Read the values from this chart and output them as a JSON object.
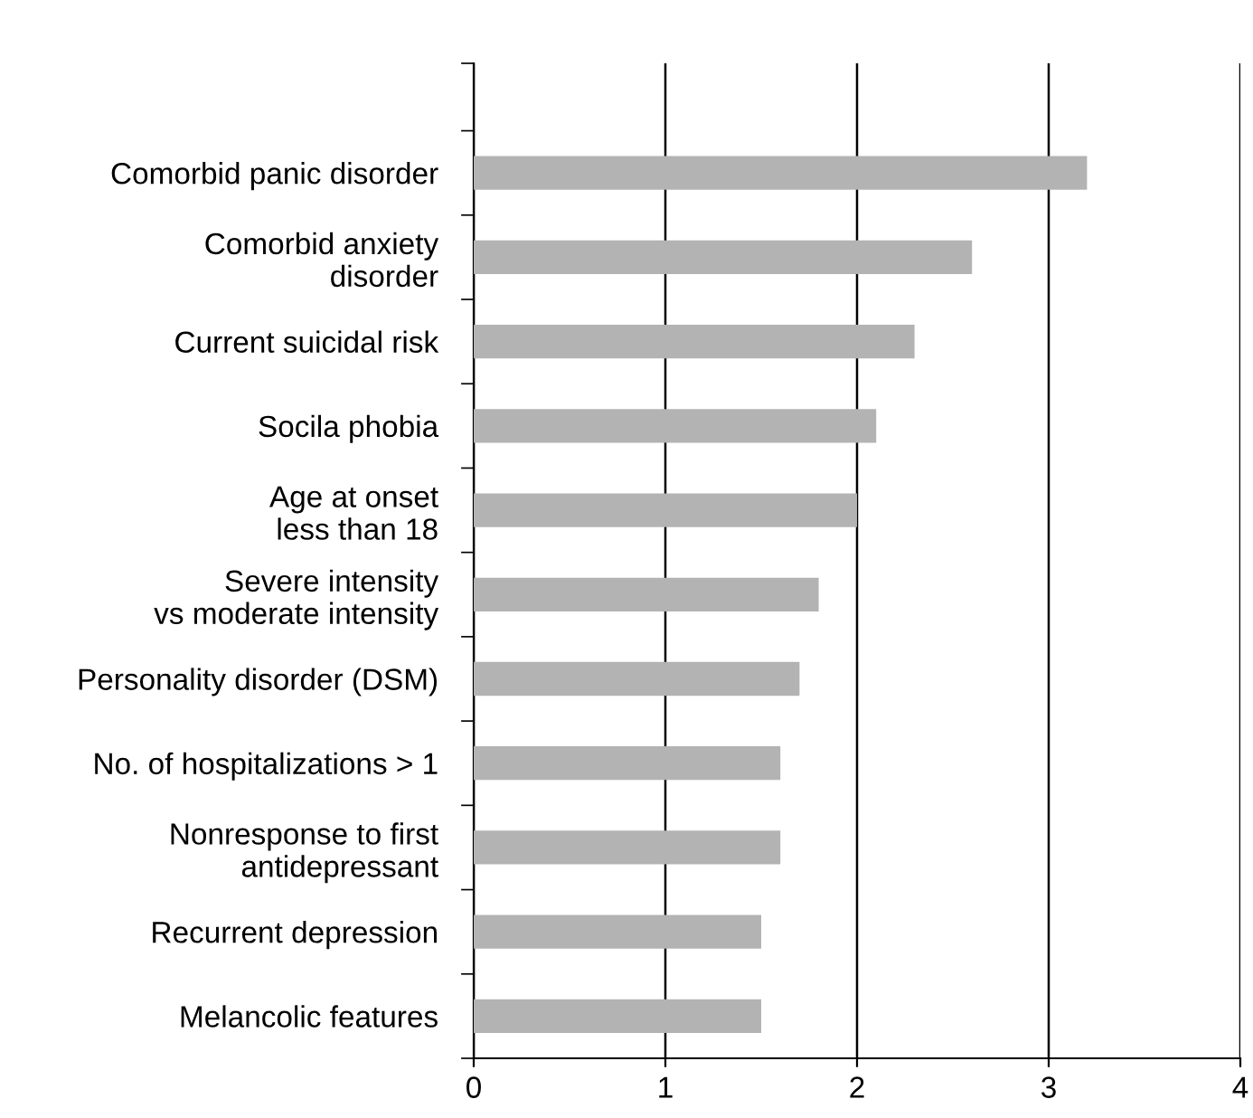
{
  "chart_data": {
    "type": "bar",
    "orientation": "horizontal",
    "categories": [
      "Comorbid panic disorder",
      "Comorbid anxiety\ndisorder",
      "Current suicidal risk",
      "Socila phobia",
      "Age at onset\nless than 18",
      "Severe intensity\nvs moderate intensity",
      "Personality disorder (DSM)",
      "No. of hospitalizations > 1",
      "Nonresponse to first\nantidepressant",
      "Recurrent depression",
      "Melancolic features"
    ],
    "values": [
      3.2,
      2.6,
      2.3,
      2.1,
      2.0,
      1.8,
      1.7,
      1.6,
      1.6,
      1.5,
      1.5
    ],
    "color": "#b3b3b3",
    "xlim": [
      0,
      4
    ],
    "xticks": [
      0,
      1,
      2,
      3,
      4
    ],
    "grid": "x",
    "legend": false
  }
}
